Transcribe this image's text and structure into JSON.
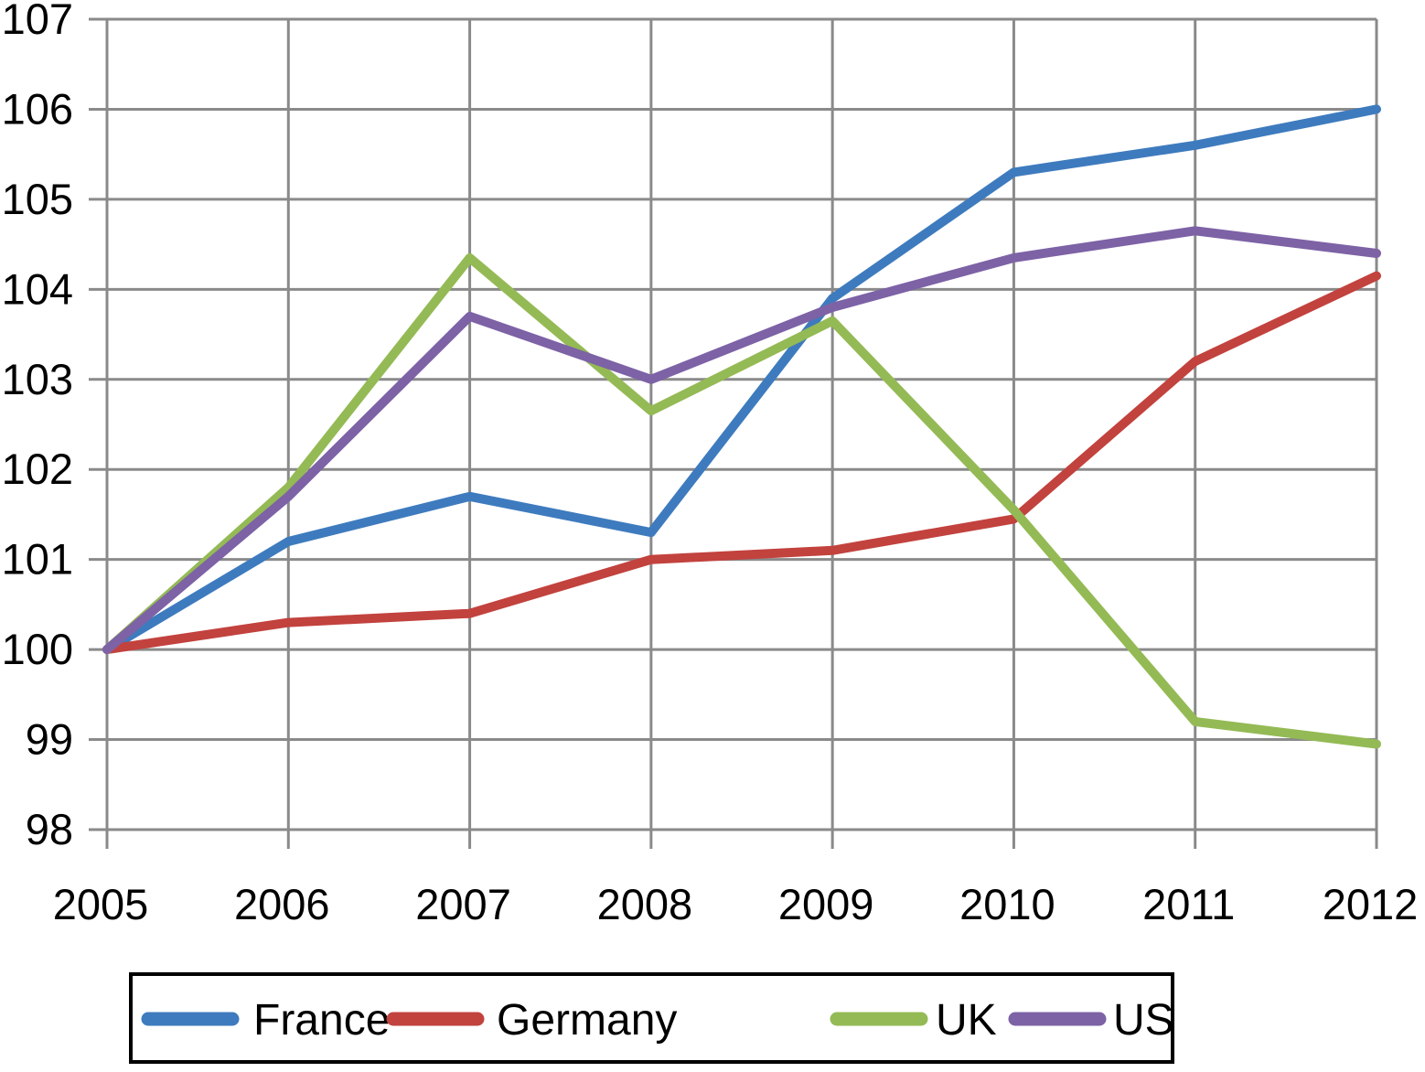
{
  "chart_data": {
    "type": "line",
    "title": "",
    "xlabel": "",
    "ylabel": "",
    "grid": true,
    "legend_position": "bottom",
    "x": [
      2005,
      2006,
      2007,
      2008,
      2009,
      2010,
      2011,
      2012
    ],
    "x_tick_labels": [
      "2005",
      "2006",
      "2007",
      "2008",
      "2009",
      "2010",
      "2011",
      "2012"
    ],
    "ylim": [
      98,
      107
    ],
    "y_ticks": [
      98,
      99,
      100,
      101,
      102,
      103,
      104,
      105,
      106,
      107
    ],
    "y_tick_labels": [
      "98",
      "99",
      "100",
      "101",
      "102",
      "103",
      "104",
      "105",
      "106",
      "107"
    ],
    "gridline_color": "#8A8A8A",
    "legend_border_color": "#000000",
    "series": [
      {
        "name": "France",
        "color": "#3E7BBE",
        "values": [
          100,
          101.2,
          101.7,
          101.3,
          103.9,
          105.3,
          105.6,
          106.0
        ]
      },
      {
        "name": "Germany",
        "color": "#C2423E",
        "values": [
          100,
          100.3,
          100.4,
          101.0,
          101.1,
          101.45,
          103.2,
          104.15
        ]
      },
      {
        "name": "UK",
        "color": "#94BA55",
        "values": [
          100,
          101.8,
          104.35,
          102.65,
          103.65,
          101.55,
          99.2,
          98.95
        ]
      },
      {
        "name": "US",
        "color": "#7D62A6",
        "values": [
          100,
          101.7,
          103.7,
          103.0,
          103.8,
          104.35,
          104.65,
          104.4
        ]
      }
    ]
  }
}
